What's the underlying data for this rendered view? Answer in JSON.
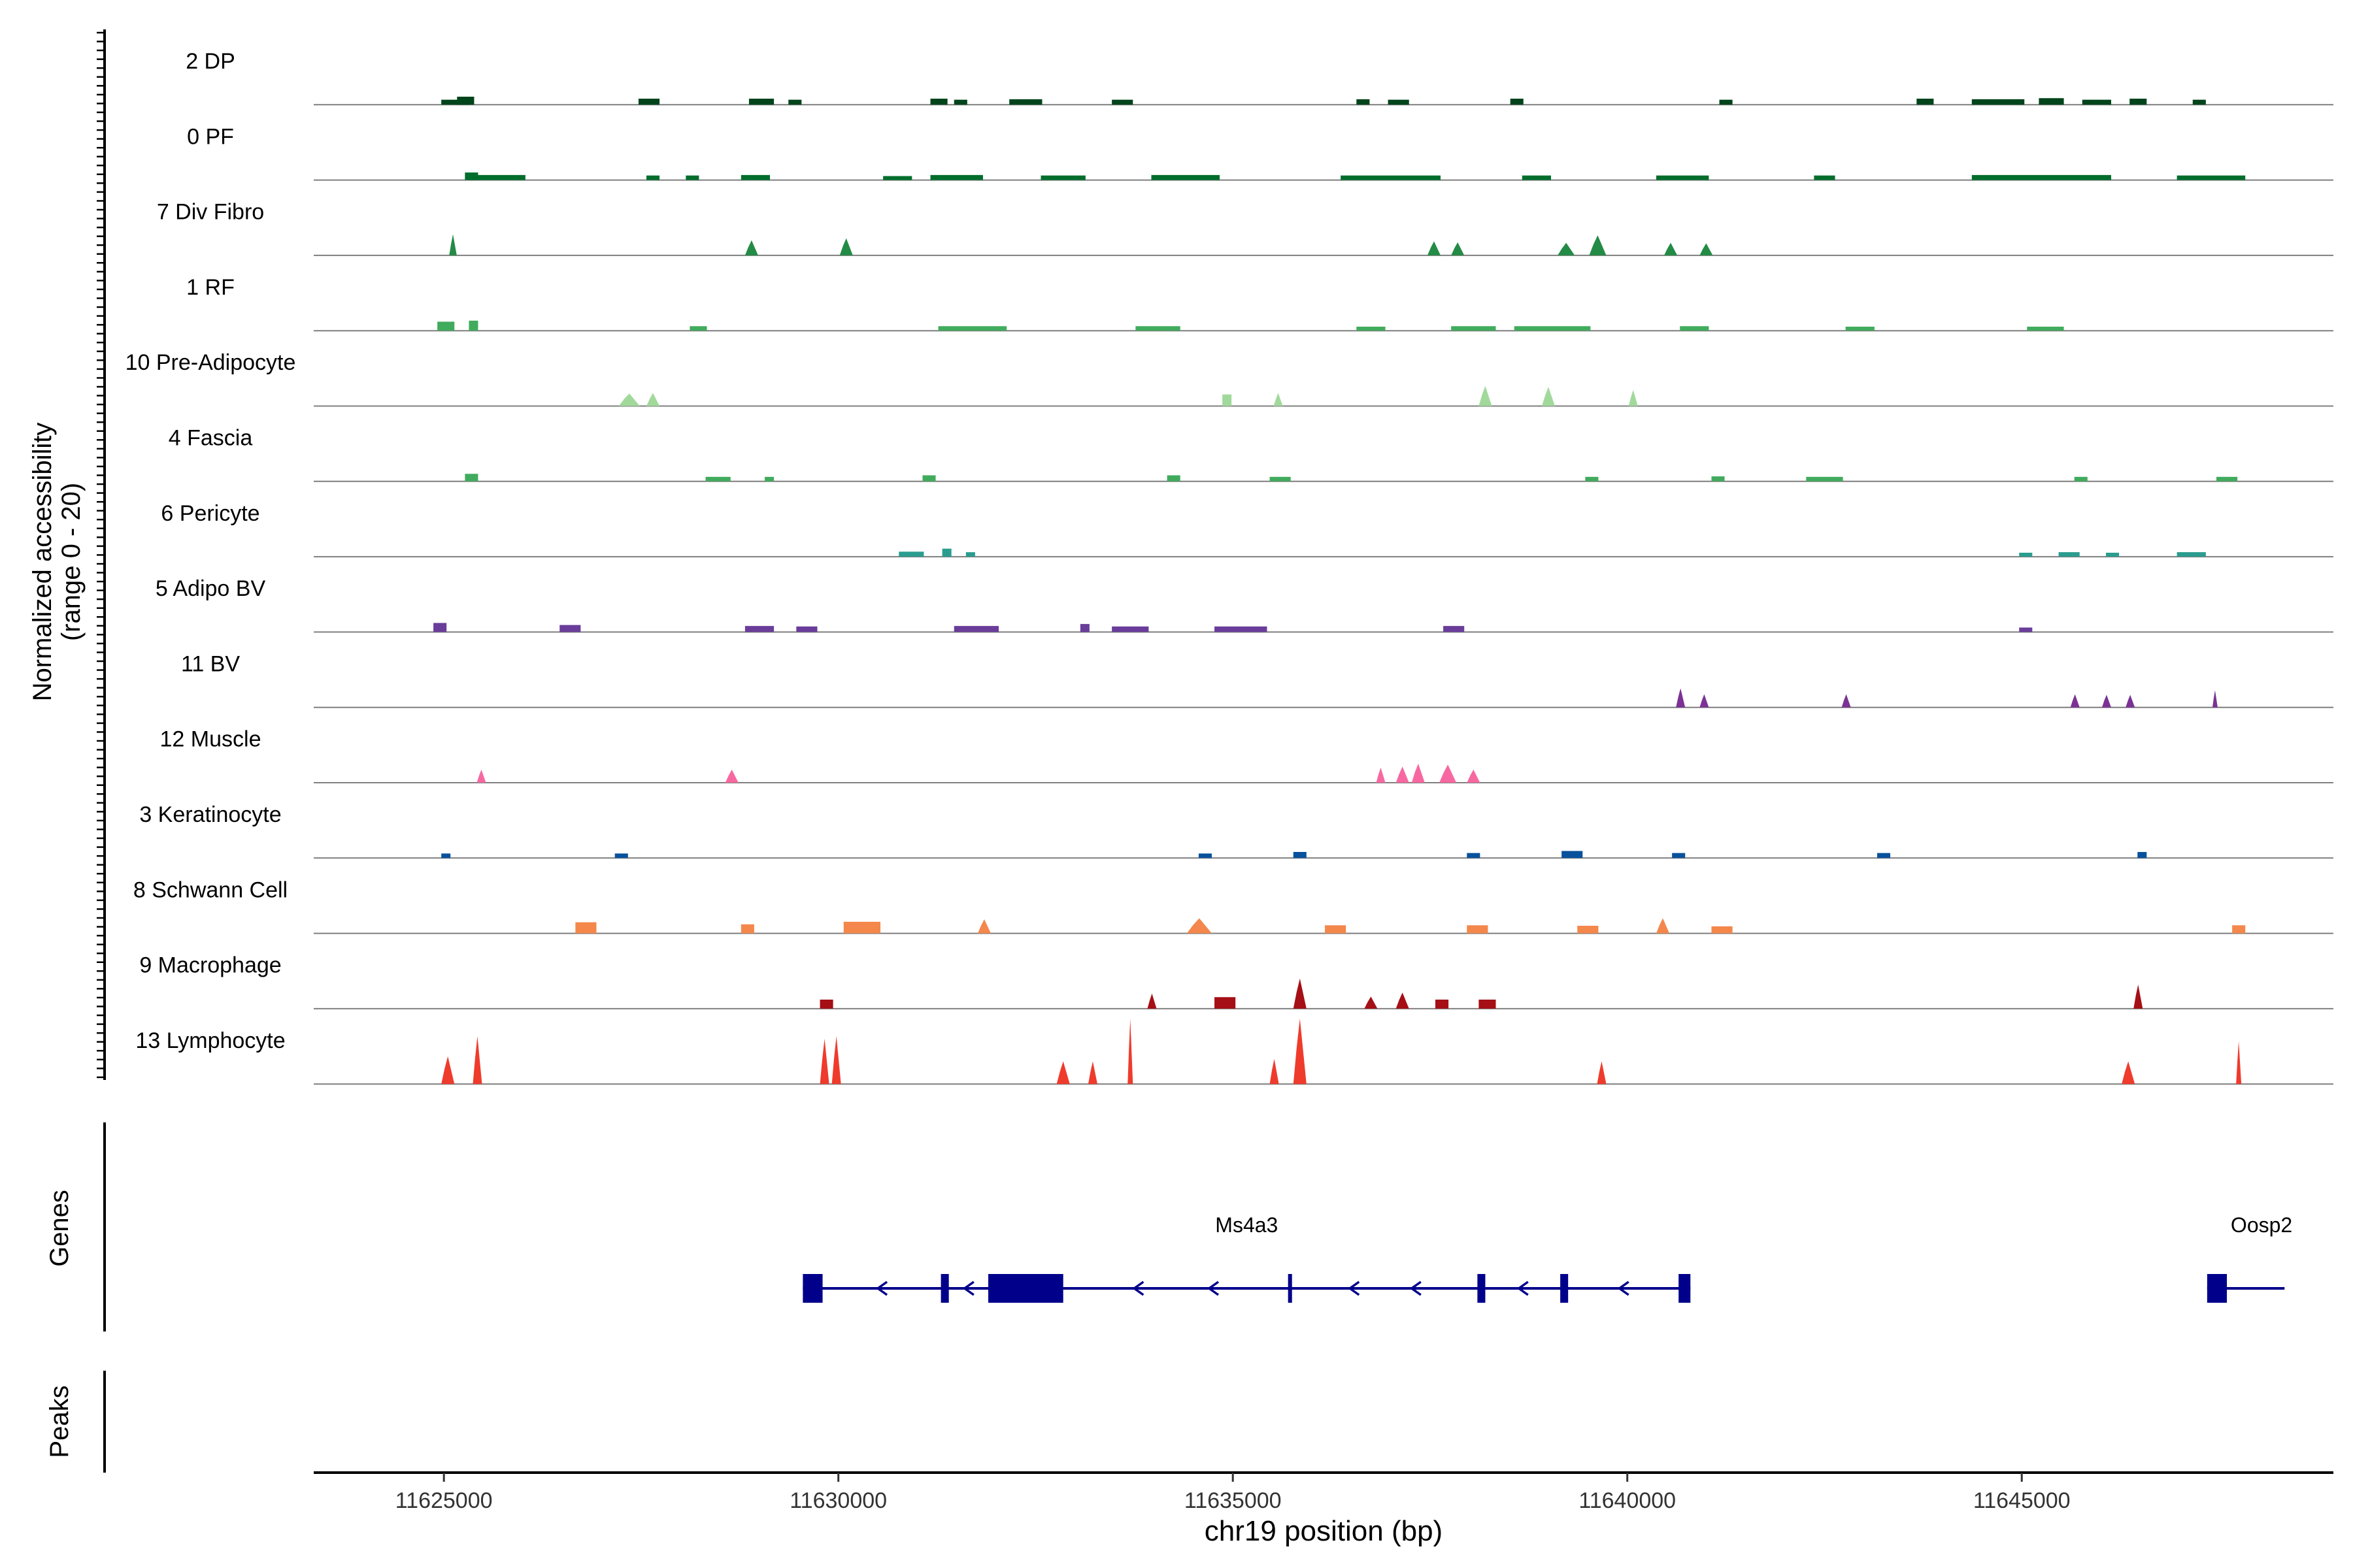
{
  "chart_data": {
    "type": "area",
    "title": "",
    "ylabel_accessibility": [
      "Normalized accessibility",
      "(range 0 - 20)"
    ],
    "ylabel_genes": "Genes",
    "ylabel_peaks": "Peaks",
    "xlabel": "chr19 position (bp)",
    "xlim": [
      11623350,
      11648950
    ],
    "x_ticks": [
      11625000,
      11630000,
      11635000,
      11640000,
      11645000
    ],
    "x_tick_labels": [
      "11625000",
      "11630000",
      "11635000",
      "11640000",
      "11645000"
    ],
    "y_range": [
      0,
      20
    ],
    "tracks": [
      {
        "name": "2 DP",
        "color": "#00441b",
        "peaks": [
          [
            11625350,
            11625200,
            1.6
          ],
          [
            11627700,
            11627500,
            1.2
          ],
          [
            11628900,
            11629150,
            1.2
          ],
          [
            11631200,
            11631350,
            1.2
          ],
          [
            11632200,
            11632550,
            1.1
          ],
          [
            11636600,
            11636700,
            1.1
          ],
          [
            11638550,
            11638650,
            1.2
          ],
          [
            11643700,
            11643850,
            1.2
          ],
          [
            11645250,
            11645500,
            1.3
          ],
          [
            11646400,
            11646550,
            1.2
          ],
          [
            11625000,
            11625300,
            1.0
          ],
          [
            11631500,
            11631600,
            1.0
          ],
          [
            11629400,
            11629500,
            1.0
          ],
          [
            11633500,
            11633700,
            1.0
          ],
          [
            11637000,
            11637200,
            1.0
          ],
          [
            11641200,
            11641300,
            1.0
          ],
          [
            11644400,
            11645000,
            1.1
          ],
          [
            11645800,
            11646100,
            1.0
          ],
          [
            11647200,
            11647300,
            1.0
          ]
        ]
      },
      {
        "name": "0 PF",
        "color": "#006d2c",
        "peaks": [
          [
            11625350,
            11626000,
            1.0
          ],
          [
            11627600,
            11627700,
            0.9
          ],
          [
            11628100,
            11628200,
            0.9
          ],
          [
            11628800,
            11629100,
            1.0
          ],
          [
            11630600,
            11630900,
            0.8
          ],
          [
            11631200,
            11631800,
            1.0
          ],
          [
            11632600,
            11633100,
            0.9
          ],
          [
            11634000,
            11634800,
            1.0
          ],
          [
            11636400,
            11637600,
            0.9
          ],
          [
            11638700,
            11639000,
            0.9
          ],
          [
            11640400,
            11641000,
            0.9
          ],
          [
            11642400,
            11642600,
            0.9
          ],
          [
            11644400,
            11646100,
            1.0
          ],
          [
            11647000,
            11647800,
            0.9
          ],
          [
            11625300,
            11625400,
            1.5
          ]
        ]
      },
      {
        "name": "7 Div Fibro",
        "color": "#238b45",
        "peaks": [
          [
            11625130,
            11625100,
            4.2
          ],
          [
            11628950,
            11628850,
            3.0
          ],
          [
            11630150,
            11630050,
            3.4
          ],
          [
            11637600,
            11637500,
            2.8
          ],
          [
            11637800,
            11637900,
            2.6
          ],
          [
            11639150,
            11639300,
            2.5
          ],
          [
            11639550,
            11639700,
            4.0
          ],
          [
            11640500,
            11640600,
            2.5
          ],
          [
            11640950,
            11641050,
            2.4
          ]
        ]
      },
      {
        "name": "1 RF",
        "color": "#41ab5d",
        "peaks": [
          [
            11624950,
            11625100,
            1.8
          ],
          [
            11625350,
            11625400,
            2.0
          ],
          [
            11628150,
            11628300,
            0.9
          ],
          [
            11631300,
            11632100,
            0.9
          ],
          [
            11633800,
            11634300,
            0.9
          ],
          [
            11636600,
            11636900,
            0.8
          ],
          [
            11637800,
            11638300,
            0.9
          ],
          [
            11638600,
            11639500,
            0.9
          ],
          [
            11640700,
            11641000,
            0.9
          ],
          [
            11642800,
            11643100,
            0.8
          ],
          [
            11645100,
            11645500,
            0.8
          ]
        ]
      },
      {
        "name": "10 Pre-Adipocyte",
        "color": "#a1d99b",
        "peaks": [
          [
            11627250,
            11627450,
            2.5
          ],
          [
            11627600,
            11627700,
            2.6
          ],
          [
            11634900,
            11634950,
            2.3
          ],
          [
            11635550,
            11635600,
            2.6
          ],
          [
            11638150,
            11638250,
            4.0
          ],
          [
            11638950,
            11639050,
            3.8
          ],
          [
            11640050,
            11640100,
            3.2
          ]
        ]
      },
      {
        "name": "4 Fascia",
        "color": "#41ab5d",
        "peaks": [
          [
            11625400,
            11625300,
            1.5
          ],
          [
            11628350,
            11628600,
            0.9
          ],
          [
            11629100,
            11629150,
            0.9
          ],
          [
            11631100,
            11631200,
            1.2
          ],
          [
            11634200,
            11634300,
            1.2
          ],
          [
            11635500,
            11635700,
            0.9
          ],
          [
            11639500,
            11639600,
            0.9
          ],
          [
            11641100,
            11641200,
            1.0
          ],
          [
            11642300,
            11642700,
            0.9
          ],
          [
            11645700,
            11645800,
            0.9
          ],
          [
            11647500,
            11647700,
            0.9
          ]
        ]
      },
      {
        "name": "6 Pericyte",
        "color": "#2a9d8f",
        "peaks": [
          [
            11630800,
            11631050,
            1.0
          ],
          [
            11631350,
            11631400,
            1.6
          ],
          [
            11631650,
            11631700,
            0.9
          ],
          [
            11645000,
            11645100,
            0.8
          ],
          [
            11645500,
            11645700,
            0.9
          ],
          [
            11646100,
            11646200,
            0.8
          ],
          [
            11647000,
            11647300,
            0.9
          ]
        ]
      },
      {
        "name": "5 Adipo BV",
        "color": "#6a3d9a",
        "peaks": [
          [
            11625000,
            11624900,
            1.8
          ],
          [
            11626700,
            11626500,
            1.4
          ],
          [
            11628850,
            11629150,
            1.2
          ],
          [
            11629500,
            11629700,
            1.1
          ],
          [
            11631500,
            11632000,
            1.2
          ],
          [
            11633100,
            11633150,
            1.6
          ],
          [
            11633500,
            11633900,
            1.1
          ],
          [
            11634800,
            11635400,
            1.1
          ],
          [
            11637700,
            11637900,
            1.2
          ],
          [
            11645000,
            11645100,
            0.9
          ]
        ]
      },
      {
        "name": "11 BV",
        "color": "#7b3294",
        "peaks": [
          [
            11640650,
            11640700,
            3.8
          ],
          [
            11640950,
            11641000,
            2.6
          ],
          [
            11642750,
            11642800,
            2.6
          ],
          [
            11645650,
            11645700,
            2.6
          ],
          [
            11646400,
            11646350,
            2.5
          ],
          [
            11647450,
            11647450,
            3.4
          ],
          [
            11646050,
            11646100,
            2.5
          ]
        ]
      },
      {
        "name": "12 Muscle",
        "color": "#f768a1",
        "peaks": [
          [
            11625450,
            11625500,
            2.6
          ],
          [
            11628600,
            11628700,
            2.6
          ],
          [
            11636850,
            11636900,
            3.0
          ],
          [
            11637300,
            11637400,
            3.8
          ],
          [
            11637650,
            11637800,
            3.6
          ],
          [
            11638000,
            11638100,
            2.6
          ],
          [
            11637100,
            11637200,
            3.2
          ]
        ]
      },
      {
        "name": "3 Keratinocyte",
        "color": "#08519c",
        "peaks": [
          [
            11635800,
            11635900,
            1.2
          ],
          [
            11638000,
            11638100,
            1.0
          ],
          [
            11639200,
            11639400,
            1.4
          ],
          [
            11640600,
            11640700,
            1.0
          ],
          [
            11643200,
            11643300,
            1.0
          ],
          [
            11646500,
            11646550,
            1.2
          ],
          [
            11625000,
            11625050,
            0.9
          ],
          [
            11627200,
            11627300,
            0.9
          ],
          [
            11634600,
            11634700,
            0.9
          ]
        ]
      },
      {
        "name": "8 Schwann Cell",
        "color": "#f4874b",
        "peaks": [
          [
            11626700,
            11626900,
            2.2
          ],
          [
            11628800,
            11628900,
            1.8
          ],
          [
            11630100,
            11630500,
            2.3
          ],
          [
            11631800,
            11631900,
            2.8
          ],
          [
            11634450,
            11634700,
            3.0
          ],
          [
            11636200,
            11636400,
            1.6
          ],
          [
            11638000,
            11638200,
            1.6
          ],
          [
            11639400,
            11639600,
            1.5
          ],
          [
            11640400,
            11640500,
            3.0
          ],
          [
            11641100,
            11641300,
            1.4
          ],
          [
            11647700,
            11647800,
            1.6
          ]
        ]
      },
      {
        "name": "9 Macrophage",
        "color": "#a50f15",
        "peaks": [
          [
            11629800,
            11629900,
            1.8
          ],
          [
            11633950,
            11634000,
            3.0
          ],
          [
            11634800,
            11635000,
            2.3
          ],
          [
            11635800,
            11635900,
            6.0
          ],
          [
            11636700,
            11636800,
            2.4
          ],
          [
            11637100,
            11637200,
            3.2
          ],
          [
            11637600,
            11637700,
            1.8
          ],
          [
            11638150,
            11638300,
            1.8
          ],
          [
            11646450,
            11646500,
            4.8
          ]
        ]
      },
      {
        "name": "13 Lymphocyte",
        "color": "#ef3b2c",
        "peaks": [
          [
            11625000,
            11625100,
            5.5
          ],
          [
            11625400,
            11625450,
            9.5
          ],
          [
            11629800,
            11629850,
            9.0
          ],
          [
            11629950,
            11630000,
            9.5
          ],
          [
            11632800,
            11632900,
            4.5
          ],
          [
            11633200,
            11633250,
            4.5
          ],
          [
            11633700,
            11633700,
            13.0
          ],
          [
            11635500,
            11635550,
            5.0
          ],
          [
            11635800,
            11635900,
            13.0
          ],
          [
            11639650,
            11639700,
            4.5
          ],
          [
            11646300,
            11646400,
            4.5
          ],
          [
            11647750,
            11647750,
            8.5
          ]
        ]
      }
    ],
    "genes": [
      {
        "name": "Ms4a3",
        "strand": "-",
        "start": 11629550,
        "end": 11640800,
        "exons": [
          [
            11629550,
            11629800
          ],
          [
            11631300,
            11631400
          ],
          [
            11631900,
            11632850
          ],
          [
            11635700,
            11635750
          ],
          [
            11638100,
            11638200
          ],
          [
            11639150,
            11639250
          ],
          [
            11640650,
            11640800
          ]
        ]
      },
      {
        "name": "Oosp2",
        "strand": "+",
        "start": 11647350,
        "end": 11647900,
        "exons": [
          [
            11647350,
            11647600
          ]
        ]
      }
    ]
  }
}
